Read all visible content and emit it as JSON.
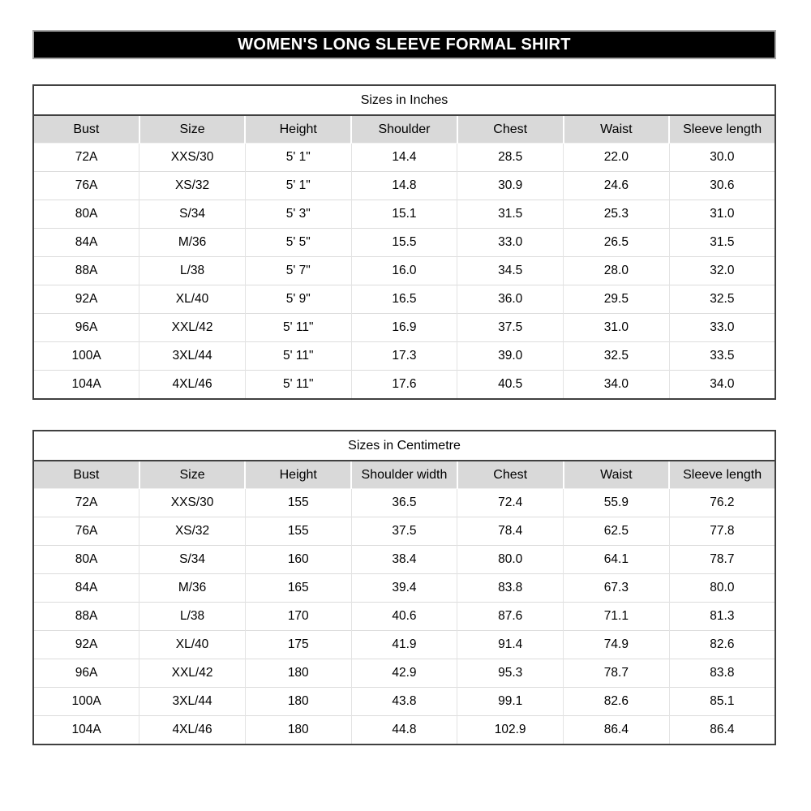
{
  "title_bar": {
    "text": "WOMEN'S LONG SLEEVE FORMAL SHIRT",
    "bg_color": "#000000",
    "text_color": "#ffffff",
    "border_color": "#a6a6a6"
  },
  "colors": {
    "table_border": "#404040",
    "header_bg": "#d9d9d9",
    "row_separator": "#dcdcdc",
    "column_separator": "#e3e3e3"
  },
  "tables": [
    {
      "title": "Sizes in Inches",
      "headers": [
        "Bust",
        "Size",
        "Height",
        "Shoulder",
        "Chest",
        "Waist",
        "Sleeve length"
      ],
      "rows": [
        [
          "72A",
          "XXS/30",
          "5' 1\"",
          "14.4",
          "28.5",
          "22.0",
          "30.0"
        ],
        [
          "76A",
          "XS/32",
          "5' 1\"",
          "14.8",
          "30.9",
          "24.6",
          "30.6"
        ],
        [
          "80A",
          "S/34",
          "5' 3\"",
          "15.1",
          "31.5",
          "25.3",
          "31.0"
        ],
        [
          "84A",
          "M/36",
          "5' 5\"",
          "15.5",
          "33.0",
          "26.5",
          "31.5"
        ],
        [
          "88A",
          "L/38",
          "5' 7\"",
          "16.0",
          "34.5",
          "28.0",
          "32.0"
        ],
        [
          "92A",
          "XL/40",
          "5' 9\"",
          "16.5",
          "36.0",
          "29.5",
          "32.5"
        ],
        [
          "96A",
          "XXL/42",
          "5' 11\"",
          "16.9",
          "37.5",
          "31.0",
          "33.0"
        ],
        [
          "100A",
          "3XL/44",
          "5' 11\"",
          "17.3",
          "39.0",
          "32.5",
          "33.5"
        ],
        [
          "104A",
          "4XL/46",
          "5' 11\"",
          "17.6",
          "40.5",
          "34.0",
          "34.0"
        ]
      ]
    },
    {
      "title": "Sizes in Centimetre",
      "headers": [
        "Bust",
        "Size",
        "Height",
        "Shoulder width",
        "Chest",
        "Waist",
        "Sleeve length"
      ],
      "rows": [
        [
          "72A",
          "XXS/30",
          "155",
          "36.5",
          "72.4",
          "55.9",
          "76.2"
        ],
        [
          "76A",
          "XS/32",
          "155",
          "37.5",
          "78.4",
          "62.5",
          "77.8"
        ],
        [
          "80A",
          "S/34",
          "160",
          "38.4",
          "80.0",
          "64.1",
          "78.7"
        ],
        [
          "84A",
          "M/36",
          "165",
          "39.4",
          "83.8",
          "67.3",
          "80.0"
        ],
        [
          "88A",
          "L/38",
          "170",
          "40.6",
          "87.6",
          "71.1",
          "81.3"
        ],
        [
          "92A",
          "XL/40",
          "175",
          "41.9",
          "91.4",
          "74.9",
          "82.6"
        ],
        [
          "96A",
          "XXL/42",
          "180",
          "42.9",
          "95.3",
          "78.7",
          "83.8"
        ],
        [
          "100A",
          "3XL/44",
          "180",
          "43.8",
          "99.1",
          "82.6",
          "85.1"
        ],
        [
          "104A",
          "4XL/46",
          "180",
          "44.8",
          "102.9",
          "86.4",
          "86.4"
        ]
      ]
    }
  ]
}
